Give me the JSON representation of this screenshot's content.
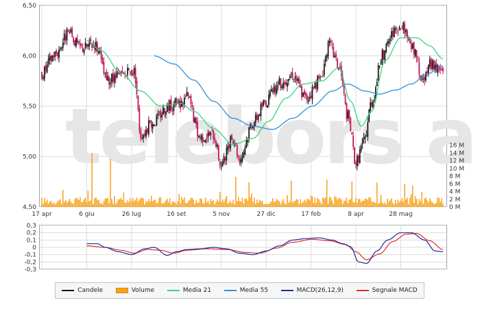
{
  "watermark": "telebors a",
  "colors": {
    "candle_up": "#1a1a1a",
    "candle_down": "#c0145a",
    "volume": "#f7a21b",
    "media21": "#37d67a",
    "media55": "#2f8fd8",
    "macd": "#1c2a9c",
    "signal": "#e32b2b",
    "grid": "#dcdcdc"
  },
  "chart_data": [
    {
      "type": "candlestick",
      "x_tick_labels": [
        "17 apr",
        "6 giu",
        "26 lug",
        "16 set",
        "5 nov",
        "27 dic",
        "17 feb",
        "8 apr",
        "28 mag"
      ],
      "x_tick_index": [
        0,
        34,
        68,
        102,
        136,
        170,
        204,
        238,
        272
      ],
      "n_points": 305,
      "ylim": [
        4.5,
        6.5
      ],
      "y_ticks": [
        "4,50",
        "5,00",
        "5,50",
        "6,00",
        "6,50"
      ],
      "series": [
        {
          "name": "Candele",
          "close_anchors": [
            [
              0,
              5.83
            ],
            [
              10,
              6.02
            ],
            [
              20,
              6.22
            ],
            [
              30,
              6.08
            ],
            [
              40,
              6.12
            ],
            [
              50,
              5.75
            ],
            [
              60,
              5.8
            ],
            [
              70,
              5.85
            ],
            [
              75,
              5.22
            ],
            [
              85,
              5.35
            ],
            [
              95,
              5.5
            ],
            [
              105,
              5.52
            ],
            [
              110,
              5.6
            ],
            [
              120,
              5.2
            ],
            [
              130,
              5.22
            ],
            [
              136,
              4.92
            ],
            [
              145,
              5.18
            ],
            [
              150,
              4.98
            ],
            [
              160,
              5.35
            ],
            [
              170,
              5.55
            ],
            [
              180,
              5.72
            ],
            [
              190,
              5.82
            ],
            [
              200,
              5.58
            ],
            [
              210,
              5.75
            ],
            [
              218,
              6.1
            ],
            [
              225,
              5.9
            ],
            [
              232,
              5.4
            ],
            [
              238,
              4.95
            ],
            [
              244,
              5.15
            ],
            [
              250,
              5.55
            ],
            [
              258,
              6.0
            ],
            [
              266,
              6.22
            ],
            [
              274,
              6.28
            ],
            [
              282,
              6.05
            ],
            [
              288,
              5.75
            ],
            [
              295,
              5.92
            ],
            [
              304,
              5.85
            ]
          ]
        },
        {
          "name": "Media 21",
          "anchors": [
            [
              34,
              6.15
            ],
            [
              45,
              6.05
            ],
            [
              60,
              5.83
            ],
            [
              75,
              5.65
            ],
            [
              90,
              5.5
            ],
            [
              105,
              5.53
            ],
            [
              115,
              5.45
            ],
            [
              130,
              5.28
            ],
            [
              145,
              5.12
            ],
            [
              160,
              5.18
            ],
            [
              172,
              5.35
            ],
            [
              185,
              5.58
            ],
            [
              198,
              5.72
            ],
            [
              212,
              5.75
            ],
            [
              225,
              5.88
            ],
            [
              234,
              5.55
            ],
            [
              242,
              5.3
            ],
            [
              250,
              5.45
            ],
            [
              260,
              5.95
            ],
            [
              272,
              6.18
            ],
            [
              284,
              6.18
            ],
            [
              294,
              6.1
            ],
            [
              304,
              5.97
            ]
          ]
        },
        {
          "name": "Media 55",
          "anchors": [
            [
              85,
              6.0
            ],
            [
              100,
              5.92
            ],
            [
              115,
              5.76
            ],
            [
              130,
              5.55
            ],
            [
              145,
              5.38
            ],
            [
              160,
              5.3
            ],
            [
              175,
              5.27
            ],
            [
              190,
              5.38
            ],
            [
              205,
              5.5
            ],
            [
              220,
              5.65
            ],
            [
              232,
              5.72
            ],
            [
              245,
              5.65
            ],
            [
              256,
              5.62
            ],
            [
              268,
              5.66
            ],
            [
              280,
              5.72
            ],
            [
              292,
              5.82
            ],
            [
              304,
              5.9
            ]
          ]
        }
      ]
    },
    {
      "type": "bar",
      "name": "Volume",
      "y_ticks": [
        "0 M",
        "2 M",
        "4 M",
        "6 M",
        "8 M",
        "10 M",
        "12 M",
        "14 M",
        "16 M"
      ],
      "ylim": [
        0,
        16
      ],
      "spikes": [
        [
          38,
          14.0
        ],
        [
          52,
          12.5
        ],
        [
          147,
          7.8
        ],
        [
          157,
          6.4
        ],
        [
          189,
          6.8
        ],
        [
          216,
          7.1
        ],
        [
          235,
          6.6
        ],
        [
          254,
          6.3
        ],
        [
          275,
          5.9
        ],
        [
          281,
          5.5
        ]
      ],
      "base_level": 1.6
    },
    {
      "type": "line",
      "ylim": [
        -0.3,
        0.3
      ],
      "y_ticks": [
        "0,3",
        "0,2",
        "0,1",
        "0",
        "-0,1",
        "-0,2",
        "-0,3"
      ],
      "series": [
        {
          "name": "MACD(26,12,9)",
          "anchors": [
            [
              34,
              0.05
            ],
            [
              42,
              0.05
            ],
            [
              48,
              0.0
            ],
            [
              58,
              -0.06
            ],
            [
              68,
              -0.1
            ],
            [
              78,
              -0.02
            ],
            [
              85,
              0.0
            ],
            [
              95,
              -0.11
            ],
            [
              102,
              -0.06
            ],
            [
              110,
              -0.03
            ],
            [
              120,
              -0.02
            ],
            [
              130,
              0.0
            ],
            [
              140,
              -0.02
            ],
            [
              150,
              -0.08
            ],
            [
              160,
              -0.1
            ],
            [
              170,
              -0.05
            ],
            [
              180,
              0.02
            ],
            [
              190,
              0.1
            ],
            [
              200,
              0.12
            ],
            [
              210,
              0.13
            ],
            [
              220,
              0.1
            ],
            [
              228,
              0.05
            ],
            [
              234,
              0.01
            ],
            [
              240,
              -0.2
            ],
            [
              246,
              -0.22
            ],
            [
              254,
              -0.05
            ],
            [
              262,
              0.1
            ],
            [
              272,
              0.2
            ],
            [
              280,
              0.2
            ],
            [
              290,
              0.1
            ],
            [
              298,
              -0.05
            ],
            [
              304,
              -0.06
            ]
          ]
        },
        {
          "name": "Segnale MACD",
          "anchors": [
            [
              34,
              0.02
            ],
            [
              48,
              0.0
            ],
            [
              60,
              -0.04
            ],
            [
              70,
              -0.08
            ],
            [
              80,
              -0.03
            ],
            [
              90,
              -0.04
            ],
            [
              100,
              -0.08
            ],
            [
              110,
              -0.04
            ],
            [
              125,
              -0.02
            ],
            [
              140,
              -0.03
            ],
            [
              155,
              -0.07
            ],
            [
              165,
              -0.08
            ],
            [
              178,
              -0.01
            ],
            [
              190,
              0.07
            ],
            [
              205,
              0.11
            ],
            [
              218,
              0.09
            ],
            [
              230,
              0.04
            ],
            [
              238,
              -0.06
            ],
            [
              246,
              -0.17
            ],
            [
              256,
              -0.09
            ],
            [
              266,
              0.08
            ],
            [
              276,
              0.18
            ],
            [
              284,
              0.19
            ],
            [
              294,
              0.09
            ],
            [
              304,
              -0.03
            ]
          ]
        }
      ]
    }
  ],
  "legend": {
    "items": [
      {
        "label": "Candele",
        "icon": "line-swatch",
        "color": "#111111"
      },
      {
        "label": "Volume",
        "icon": "box-swatch",
        "color": "#f7a21b"
      },
      {
        "label": "Media 21",
        "icon": "line-swatch",
        "color": "#37d67a"
      },
      {
        "label": "Media 55",
        "icon": "line-swatch",
        "color": "#2f8fd8"
      },
      {
        "label": "MACD(26,12,9)",
        "icon": "line-swatch",
        "color": "#1c2a9c"
      },
      {
        "label": "Segnale MACD",
        "icon": "line-swatch",
        "color": "#e32b2b"
      }
    ]
  }
}
